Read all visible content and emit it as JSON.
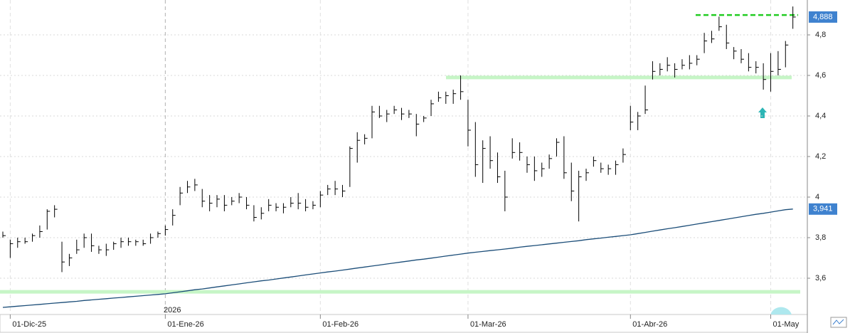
{
  "chart_data": {
    "type": "ohlc",
    "year_label": "2026",
    "categories": [
      null,
      "01-Dic-25",
      null,
      null,
      null,
      null,
      null,
      null,
      null,
      null,
      null,
      null,
      null,
      null,
      null,
      null,
      null,
      null,
      null,
      null,
      null,
      null,
      "01-Ene-26",
      null,
      null,
      null,
      null,
      null,
      null,
      null,
      null,
      null,
      null,
      null,
      null,
      null,
      null,
      null,
      null,
      null,
      null,
      null,
      null,
      "01-Feb-26",
      null,
      null,
      null,
      null,
      null,
      null,
      null,
      null,
      null,
      null,
      null,
      null,
      null,
      null,
      null,
      null,
      null,
      null,
      null,
      "01-Mar-26",
      null,
      null,
      null,
      null,
      null,
      null,
      null,
      null,
      null,
      null,
      null,
      null,
      null,
      null,
      null,
      null,
      null,
      null,
      null,
      null,
      null,
      "01-Abr-26",
      null,
      null,
      null,
      null,
      null,
      null,
      null,
      null,
      null,
      null,
      null,
      null,
      null,
      null,
      null,
      null,
      null,
      null,
      "01-May",
      null,
      null,
      null
    ],
    "high": [
      3.83,
      3.79,
      3.8,
      3.8,
      3.82,
      3.86,
      3.94,
      3.96,
      3.78,
      3.72,
      3.79,
      3.82,
      3.82,
      3.76,
      3.77,
      3.78,
      3.8,
      3.8,
      3.79,
      3.79,
      3.82,
      3.83,
      3.86,
      3.94,
      4.05,
      4.08,
      4.09,
      4.04,
      4.01,
      4.01,
      4.01,
      4.0,
      4.02,
      4.0,
      3.96,
      3.95,
      3.99,
      3.97,
      3.97,
      4.0,
      4.02,
      3.99,
      3.98,
      4.03,
      4.06,
      4.08,
      4.06,
      4.25,
      4.32,
      4.31,
      4.45,
      4.45,
      4.43,
      4.45,
      4.44,
      4.43,
      4.41,
      4.4,
      4.48,
      4.52,
      4.52,
      4.53,
      4.6,
      4.48,
      4.37,
      4.28,
      4.3,
      4.22,
      4.13,
      4.29,
      4.27,
      4.2,
      4.2,
      4.17,
      4.21,
      4.29,
      4.3,
      4.17,
      4.13,
      4.14,
      4.2,
      4.17,
      4.16,
      4.18,
      4.24,
      4.45,
      4.42,
      4.55,
      4.67,
      4.66,
      4.69,
      4.66,
      4.68,
      4.7,
      4.7,
      4.81,
      4.82,
      4.89,
      4.85,
      4.74,
      4.73,
      4.71,
      4.67,
      4.66,
      4.71,
      4.72,
      4.77,
      4.94
    ],
    "low": [
      3.8,
      3.7,
      3.75,
      3.77,
      3.78,
      3.8,
      3.84,
      3.9,
      3.63,
      3.66,
      3.72,
      3.75,
      3.73,
      3.72,
      3.71,
      3.74,
      3.75,
      3.76,
      3.76,
      3.76,
      3.77,
      3.8,
      3.81,
      3.86,
      3.96,
      4.02,
      4.03,
      3.95,
      3.93,
      3.95,
      3.93,
      3.96,
      3.97,
      3.94,
      3.88,
      3.89,
      3.93,
      3.93,
      3.92,
      3.95,
      3.94,
      3.93,
      3.94,
      3.95,
      4.01,
      4.01,
      4.0,
      4.05,
      4.17,
      4.26,
      4.29,
      4.39,
      4.37,
      4.41,
      4.38,
      4.39,
      4.3,
      4.37,
      4.4,
      4.47,
      4.46,
      4.46,
      4.48,
      4.25,
      4.1,
      4.07,
      4.14,
      4.07,
      3.93,
      4.19,
      4.18,
      4.12,
      4.08,
      4.1,
      4.14,
      4.2,
      4.09,
      3.98,
      3.88,
      4.08,
      4.15,
      4.12,
      4.11,
      4.11,
      4.17,
      4.33,
      4.33,
      4.41,
      4.58,
      4.6,
      4.62,
      4.59,
      4.63,
      4.63,
      4.65,
      4.71,
      4.76,
      4.82,
      4.73,
      4.68,
      4.66,
      4.62,
      4.61,
      4.53,
      4.52,
      4.6,
      4.64,
      4.83
    ],
    "close": [
      3.81,
      3.77,
      3.78,
      3.78,
      3.81,
      3.83,
      3.93,
      3.94,
      3.68,
      3.7,
      3.74,
      3.8,
      3.76,
      3.74,
      3.74,
      3.77,
      3.78,
      3.78,
      3.78,
      3.77,
      3.8,
      3.82,
      3.84,
      3.91,
      4.02,
      4.05,
      4.06,
      3.98,
      3.97,
      3.99,
      3.96,
      3.98,
      4.0,
      3.96,
      3.9,
      3.92,
      3.96,
      3.95,
      3.95,
      3.97,
      3.97,
      3.95,
      3.96,
      4.01,
      4.04,
      4.04,
      4.03,
      4.24,
      4.28,
      4.29,
      4.42,
      4.4,
      4.41,
      4.43,
      4.41,
      4.41,
      4.36,
      4.39,
      4.46,
      4.49,
      4.5,
      4.51,
      4.52,
      4.33,
      4.16,
      4.24,
      4.18,
      4.1,
      4.0,
      4.22,
      4.22,
      4.16,
      4.13,
      4.14,
      4.19,
      4.27,
      4.12,
      4.03,
      4.1,
      4.12,
      4.18,
      4.14,
      4.14,
      4.16,
      4.21,
      4.37,
      4.4,
      4.43,
      4.62,
      4.63,
      4.65,
      4.63,
      4.65,
      4.66,
      4.68,
      4.77,
      4.78,
      4.84,
      4.76,
      4.72,
      4.68,
      4.64,
      4.64,
      4.58,
      4.62,
      4.63,
      4.75,
      4.888
    ],
    "last_value_label": "4,888",
    "bar_color": "#000000",
    "series": [
      {
        "color": "#1b4d78",
        "last_value_label": "3,941",
        "values": [
          3.456,
          3.459,
          3.462,
          3.465,
          3.468,
          3.471,
          3.474,
          3.477,
          3.48,
          3.483,
          3.486,
          3.49,
          3.493,
          3.496,
          3.499,
          3.502,
          3.505,
          3.508,
          3.511,
          3.514,
          3.517,
          3.52,
          3.523,
          3.528,
          3.533,
          3.538,
          3.543,
          3.547,
          3.552,
          3.557,
          3.562,
          3.567,
          3.572,
          3.577,
          3.582,
          3.587,
          3.591,
          3.596,
          3.601,
          3.606,
          3.611,
          3.616,
          3.621,
          3.626,
          3.631,
          3.635,
          3.64,
          3.645,
          3.65,
          3.655,
          3.66,
          3.665,
          3.67,
          3.675,
          3.68,
          3.685,
          3.69,
          3.694,
          3.699,
          3.704,
          3.709,
          3.714,
          3.719,
          3.724,
          3.728,
          3.732,
          3.736,
          3.74,
          3.744,
          3.748,
          3.753,
          3.757,
          3.761,
          3.765,
          3.769,
          3.773,
          3.777,
          3.781,
          3.785,
          3.79,
          3.794,
          3.798,
          3.802,
          3.806,
          3.81,
          3.814,
          3.82,
          3.826,
          3.832,
          3.838,
          3.844,
          3.849,
          3.855,
          3.861,
          3.867,
          3.873,
          3.879,
          3.885,
          3.891,
          3.897,
          3.903,
          3.909,
          3.915,
          3.92,
          3.926,
          3.932,
          3.938,
          3.941
        ]
      }
    ],
    "levels": [
      {
        "value": 4.59,
        "color": "#c6f5c6",
        "dashed": false
      },
      {
        "value": 3.533,
        "color": "#c6f5c6",
        "dashed": false
      },
      {
        "value": 4.898,
        "color": "#22cc22",
        "dashed": true
      }
    ],
    "ylim": [
      3.421,
      4.972
    ],
    "yticks": [
      {
        "value": 3.6,
        "label": "3,6"
      },
      {
        "value": 3.8,
        "label": "3,8"
      },
      4,
      {
        "value": 4.2,
        "label": "4,2"
      },
      {
        "value": 4.4,
        "label": "4,4"
      },
      {
        "value": 4.6,
        "label": "4,6"
      },
      {
        "value": 4.8,
        "label": "4,8"
      }
    ],
    "grid": true,
    "badge_color": "#3f82cf"
  }
}
